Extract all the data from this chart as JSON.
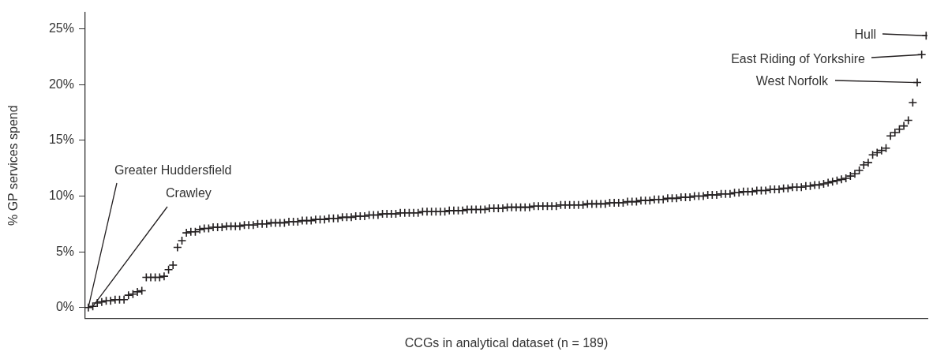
{
  "chart_data": {
    "type": "scatter",
    "xlabel": "CCGs in analytical dataset (n = 189)",
    "ylabel": "% GP services spend",
    "marker": "cross",
    "grid": false,
    "color": "#231f20",
    "categories": [
      null,
      null,
      null,
      null,
      null,
      null,
      null,
      null,
      null,
      null,
      null,
      null,
      null,
      null,
      null,
      null,
      null,
      null,
      null,
      null,
      null,
      null,
      null,
      null,
      null,
      null,
      null,
      null,
      null,
      null,
      null,
      null,
      null,
      null,
      null,
      null,
      null,
      null,
      null,
      null,
      null,
      null,
      null,
      null,
      null,
      null,
      null,
      null,
      null,
      null,
      null,
      null,
      null,
      null,
      null,
      null,
      null,
      null,
      null,
      null,
      null,
      null,
      null,
      null,
      null,
      null,
      null,
      null,
      null,
      null,
      null,
      null,
      null,
      null,
      null,
      null,
      null,
      null,
      null,
      null,
      null,
      null,
      null,
      null,
      null,
      null,
      null,
      null,
      null,
      null,
      null,
      null,
      null,
      null,
      null,
      null,
      null,
      null,
      null,
      null,
      null,
      null,
      null,
      null,
      null,
      null,
      null,
      null,
      null,
      null,
      null,
      null,
      null,
      null,
      null,
      null,
      null,
      null,
      null,
      null,
      null,
      null,
      null,
      null,
      null,
      null,
      null,
      null,
      null,
      null,
      null,
      null,
      null,
      null,
      null,
      null,
      null,
      null,
      null,
      null,
      null,
      null,
      null,
      null,
      null,
      null,
      null,
      null,
      null,
      null,
      null,
      null,
      null,
      null,
      null,
      null,
      null,
      null,
      null,
      null,
      null,
      null,
      null,
      null,
      null,
      null,
      null,
      null,
      null,
      null,
      null,
      null,
      null,
      null,
      null,
      null,
      null,
      null,
      null,
      null,
      null,
      null,
      null,
      null,
      null,
      null,
      null,
      null,
      null
    ],
    "values": [
      0,
      0.1,
      0.4,
      0.5,
      0.6,
      0.6,
      0.7,
      0.7,
      0.7,
      1.1,
      1.2,
      1.4,
      1.5,
      2.7,
      2.7,
      2.7,
      2.7,
      2.8,
      3.4,
      3.8,
      5.4,
      6.0,
      6.7,
      6.8,
      6.8,
      7.0,
      7.1,
      7.1,
      7.2,
      7.2,
      7.2,
      7.3,
      7.3,
      7.3,
      7.3,
      7.4,
      7.4,
      7.4,
      7.5,
      7.5,
      7.5,
      7.6,
      7.6,
      7.6,
      7.6,
      7.7,
      7.7,
      7.7,
      7.8,
      7.8,
      7.8,
      7.9,
      7.9,
      7.9,
      8.0,
      8.0,
      8.0,
      8.1,
      8.1,
      8.1,
      8.2,
      8.2,
      8.2,
      8.3,
      8.3,
      8.3,
      8.4,
      8.4,
      8.4,
      8.4,
      8.5,
      8.5,
      8.5,
      8.5,
      8.5,
      8.6,
      8.6,
      8.6,
      8.6,
      8.6,
      8.6,
      8.7,
      8.7,
      8.7,
      8.7,
      8.8,
      8.8,
      8.8,
      8.8,
      8.8,
      8.9,
      8.9,
      8.9,
      8.9,
      9.0,
      9.0,
      9.0,
      9.0,
      9.0,
      9.0,
      9.1,
      9.1,
      9.1,
      9.1,
      9.1,
      9.1,
      9.2,
      9.2,
      9.2,
      9.2,
      9.2,
      9.2,
      9.3,
      9.3,
      9.3,
      9.3,
      9.3,
      9.4,
      9.4,
      9.4,
      9.4,
      9.5,
      9.5,
      9.5,
      9.6,
      9.6,
      9.6,
      9.7,
      9.7,
      9.7,
      9.8,
      9.8,
      9.8,
      9.9,
      9.9,
      9.9,
      10.0,
      10.0,
      10.0,
      10.1,
      10.1,
      10.1,
      10.2,
      10.2,
      10.2,
      10.3,
      10.3,
      10.4,
      10.4,
      10.4,
      10.5,
      10.5,
      10.5,
      10.6,
      10.6,
      10.6,
      10.7,
      10.7,
      10.8,
      10.8,
      10.8,
      10.9,
      10.9,
      11.0,
      11.0,
      11.1,
      11.2,
      11.3,
      11.4,
      11.5,
      11.6,
      11.8,
      12.0,
      12.3,
      12.8,
      13.0,
      13.7,
      13.9,
      14.1,
      14.3,
      15.4,
      15.7,
      16.0,
      16.3,
      16.8,
      18.4,
      20.2,
      22.7,
      24.4
    ],
    "ylim": [
      -1,
      26.5
    ],
    "yticks": [
      {
        "value": 0,
        "label": "0%"
      },
      {
        "value": 5,
        "label": "5%"
      },
      {
        "value": 10,
        "label": "10%"
      },
      {
        "value": 15,
        "label": "15%"
      },
      {
        "value": 20,
        "label": "20%"
      },
      {
        "value": 25,
        "label": "25%"
      }
    ],
    "annotations": [
      "Greater Huddersfield",
      "Crawley",
      "West Norfolk",
      "East Riding of Yorkshire",
      "Hull"
    ]
  }
}
